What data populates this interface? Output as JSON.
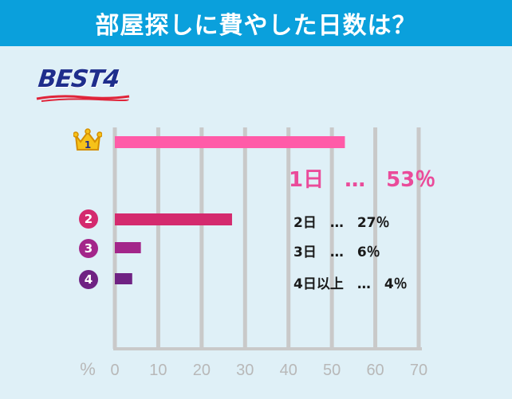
{
  "title": "部屋探しに費やした日数は？",
  "badge_text": "BEST4",
  "colors": {
    "header": "#0aa0dc",
    "background": "#dff0f7",
    "rank1": "#ff5ba8",
    "rank2": "#d42a6e",
    "rank3": "#a3268a",
    "rank4": "#6f2283",
    "axis": "#c9c9c9",
    "best_text": "#1f2e8c",
    "best_underline": "#e0253a"
  },
  "ranks": [
    {
      "number": "1",
      "icon": "crown-icon"
    },
    {
      "number": "2",
      "icon": "number-circle-icon"
    },
    {
      "number": "3",
      "icon": "number-circle-icon"
    },
    {
      "number": "4",
      "icon": "number-circle-icon"
    }
  ],
  "labels": [
    "1日　…　53％",
    "2日　…　27％",
    "3日　…　6％",
    "4日以上　…　4％"
  ],
  "chart_data": {
    "type": "bar",
    "orientation": "horizontal",
    "categories": [
      "1日",
      "2日",
      "3日",
      "4日以上"
    ],
    "values": [
      53,
      27,
      6,
      4
    ],
    "xlabel": "%",
    "xlim": [
      0,
      70
    ],
    "xticks": [
      0,
      10,
      20,
      30,
      40,
      50,
      60,
      70
    ],
    "grid": "vertical"
  }
}
